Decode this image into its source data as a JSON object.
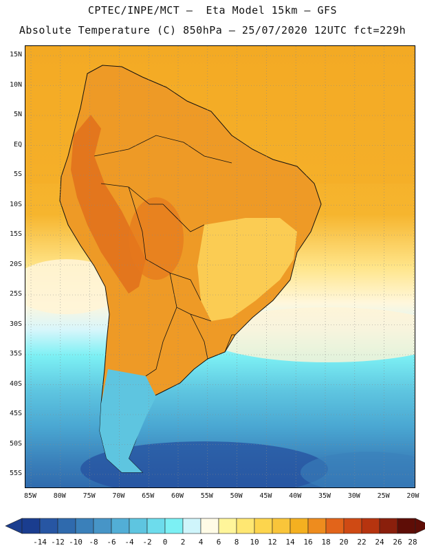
{
  "header": {
    "line1": "CPTEC/INPE/MCT –  Eta Model 15km – GFS",
    "line2": "Absolute Temperature (C) 850hPa – 25/07/2020 12UTC fct=229h"
  },
  "map": {
    "lat_labels": [
      "15N",
      "10N",
      "5N",
      "EQ",
      "5S",
      "10S",
      "15S",
      "20S",
      "25S",
      "30S",
      "35S",
      "40S",
      "45S",
      "50S",
      "55S"
    ],
    "lon_labels": [
      "85W",
      "80W",
      "75W",
      "70W",
      "65W",
      "60W",
      "55W",
      "50W",
      "45W",
      "40W",
      "35W",
      "30W",
      "25W",
      "20W"
    ],
    "field": "temperature-850hPa",
    "region": "south-america"
  },
  "colorbar": {
    "colors": [
      "#1a3d8f",
      "#2756a3",
      "#2f6aad",
      "#3a80ba",
      "#4795c7",
      "#52aed6",
      "#5ec5e0",
      "#6ddcec",
      "#7cf0f4",
      "#cff5fb",
      "#fffbe6",
      "#fff59a",
      "#ffe772",
      "#fdd54d",
      "#f9c53a",
      "#f4b020",
      "#ee8c1e",
      "#e2641a",
      "#cf4a14",
      "#b6340f",
      "#8a1f0c",
      "#5e0d06"
    ],
    "labels": [
      "-14",
      "-12",
      "-10",
      "-8",
      "-6",
      "-4",
      "-2",
      "0",
      "2",
      "4",
      "6",
      "8",
      "10",
      "12",
      "14",
      "16",
      "18",
      "20",
      "22",
      "24",
      "26",
      "28"
    ]
  }
}
